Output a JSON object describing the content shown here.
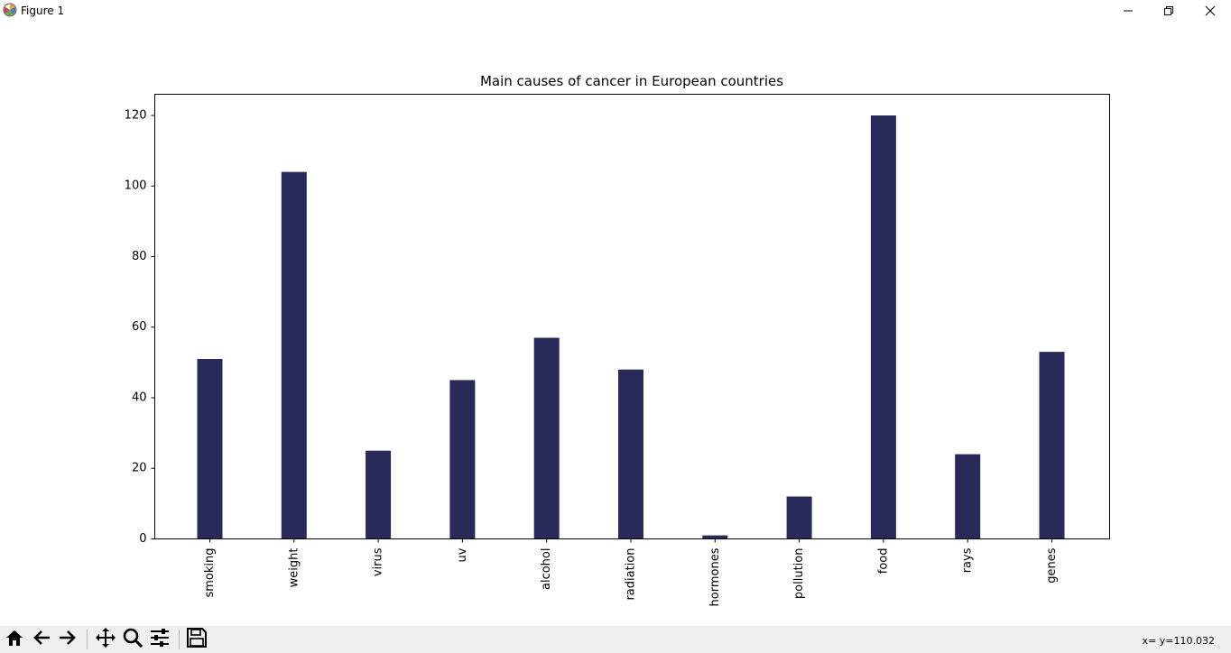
{
  "window": {
    "title": "Figure 1"
  },
  "icons": {
    "app": "matplotlib-icon",
    "minimize": "minimize-icon",
    "maximize": "restore-icon",
    "close": "close-icon"
  },
  "toolbar": {
    "buttons": [
      {
        "name": "home-button",
        "icon": "home-icon"
      },
      {
        "name": "back-button",
        "icon": "arrow-left-icon"
      },
      {
        "name": "forward-button",
        "icon": "arrow-right-icon"
      },
      {
        "name": "pan-button",
        "icon": "move-icon"
      },
      {
        "name": "zoom-button",
        "icon": "magnifier-icon"
      },
      {
        "name": "configure-subplots-button",
        "icon": "sliders-icon"
      },
      {
        "name": "save-button",
        "icon": "save-icon"
      }
    ],
    "coordinates": "x= y=110.032"
  },
  "chart_data": {
    "type": "bar",
    "title": "Main causes of cancer in European countries",
    "categories": [
      "smoking",
      "weight",
      "virus",
      "uv",
      "alcohol",
      "radiation",
      "hormones",
      "pollution",
      "food",
      "rays",
      "genes"
    ],
    "values": [
      51,
      104,
      25,
      45,
      57,
      48,
      1,
      12,
      120,
      24,
      53
    ],
    "ylim": [
      0,
      126
    ],
    "yticks": [
      0,
      20,
      40,
      60,
      80,
      100,
      120
    ],
    "bar_color": "#2a2a5a",
    "xlabel": "",
    "ylabel": "",
    "grid": false,
    "xtick_rotation": "vertical"
  }
}
